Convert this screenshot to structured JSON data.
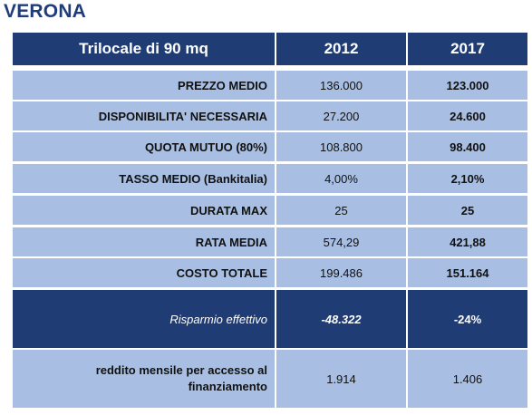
{
  "title": "VERONA",
  "table": {
    "header": {
      "label": "Trilocale di 90 mq",
      "col1": "2012",
      "col2": "2017"
    },
    "rows": [
      {
        "label": "PREZZO MEDIO",
        "v2012": "136.000",
        "v2017": "123.000"
      },
      {
        "label": "DISPONIBILITA' NECESSARIA",
        "v2012": "27.200",
        "v2017": "24.600"
      },
      {
        "label": "QUOTA MUTUO (80%)",
        "v2012": "108.800",
        "v2017": "98.400"
      },
      {
        "label": "TASSO MEDIO (Bankitalia)",
        "v2012": "4,00%",
        "v2017": "2,10%"
      },
      {
        "label": "DURATA MAX",
        "v2012": "25",
        "v2017": "25"
      },
      {
        "label": "RATA MEDIA",
        "v2012": "574,29",
        "v2017": "421,88"
      },
      {
        "label": "COSTO TOTALE",
        "v2012": "199.486",
        "v2017": "151.164"
      }
    ],
    "savings": {
      "label": "Risparmio effettivo",
      "v2012": "-48.322",
      "v2017": "-24%"
    },
    "income": {
      "label_line1": "reddito mensile per accesso al",
      "label_line2": "finanziamento",
      "v2012": "1.914",
      "v2017": "1.406"
    }
  },
  "colors": {
    "header_bg": "#1f3c75",
    "row_bg": "#a8bfe3",
    "title": "#1f3c7a"
  }
}
